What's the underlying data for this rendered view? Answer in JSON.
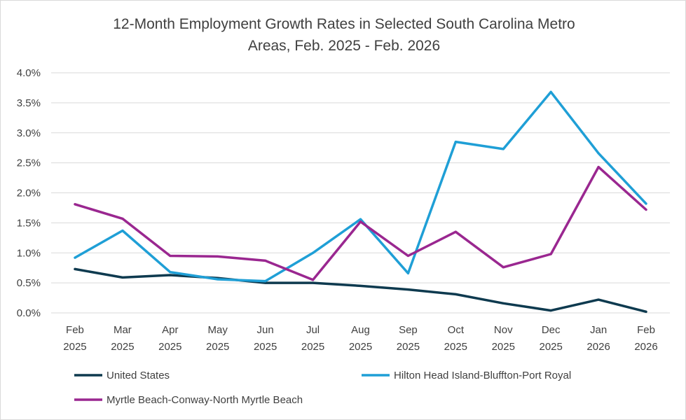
{
  "chart_data": {
    "type": "line",
    "title_lines": [
      "12-Month Employment Growth Rates in Selected  South Carolina Metro",
      "Areas, Feb. 2025 - Feb. 2026"
    ],
    "categories": [
      [
        "Feb",
        "2025"
      ],
      [
        "Mar",
        "2025"
      ],
      [
        "Apr",
        "2025"
      ],
      [
        "May",
        "2025"
      ],
      [
        "Jun",
        "2025"
      ],
      [
        "Jul",
        "2025"
      ],
      [
        "Aug",
        "2025"
      ],
      [
        "Sep",
        "2025"
      ],
      [
        "Oct",
        "2025"
      ],
      [
        "Nov",
        "2025"
      ],
      [
        "Dec",
        "2025"
      ],
      [
        "Jan",
        "2026"
      ],
      [
        "Feb",
        "2026"
      ]
    ],
    "ylim": [
      0,
      4
    ],
    "yticks": [
      "0.0%",
      "0.5%",
      "1.0%",
      "1.5%",
      "2.0%",
      "2.5%",
      "3.0%",
      "3.5%",
      "4.0%"
    ],
    "grid": true,
    "legend_position": "bottom",
    "series": [
      {
        "name": "United States",
        "color": "#0e3a4f",
        "values": [
          0.73,
          0.59,
          0.63,
          0.58,
          0.5,
          0.5,
          0.45,
          0.39,
          0.31,
          0.16,
          0.04,
          0.22,
          0.02
        ]
      },
      {
        "name": "Hilton Head Island-Bluffton-Port Royal",
        "color": "#1f9fd6",
        "values": [
          0.92,
          1.37,
          0.68,
          0.56,
          0.53,
          1.0,
          1.56,
          0.66,
          2.85,
          2.73,
          3.68,
          2.66,
          1.82
        ]
      },
      {
        "name": "Myrtle Beach-Conway-North Myrtle Beach",
        "color": "#9a2790",
        "values": [
          1.81,
          1.57,
          0.95,
          0.94,
          0.87,
          0.55,
          1.52,
          0.95,
          1.35,
          0.76,
          0.98,
          2.43,
          1.72
        ]
      }
    ]
  }
}
